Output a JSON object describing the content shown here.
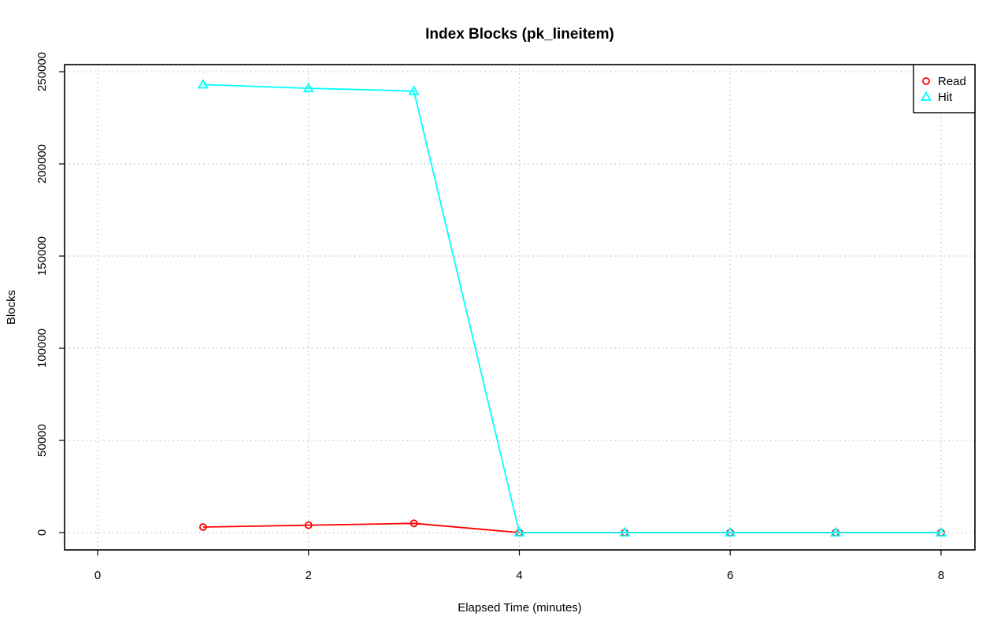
{
  "chart_data": {
    "type": "line",
    "title": "Index Blocks (pk_lineitem)",
    "xlabel": "Elapsed Time (minutes)",
    "ylabel": "Blocks",
    "xlim": [
      0,
      8
    ],
    "ylim": [
      0,
      250000
    ],
    "xticks": [
      0,
      2,
      4,
      6,
      8
    ],
    "xtick_labels": [
      "0",
      "2",
      "4",
      "6",
      "8"
    ],
    "yticks": [
      0,
      50000,
      100000,
      150000,
      200000,
      250000
    ],
    "ytick_labels": [
      "0",
      "50000",
      "100000",
      "150000",
      "200000",
      "250000"
    ],
    "grid": true,
    "legend_position": "top-right",
    "x": [
      1,
      2,
      3,
      4,
      5,
      6,
      7,
      8
    ],
    "series": [
      {
        "name": "Read",
        "marker": "circle",
        "color": "#ff0000",
        "values": [
          3000,
          4000,
          5000,
          0,
          0,
          0,
          0,
          0
        ]
      },
      {
        "name": "Hit",
        "marker": "triangle",
        "color": "#00ffff",
        "values": [
          243000,
          241000,
          239500,
          0,
          0,
          0,
          0,
          0
        ]
      }
    ]
  }
}
